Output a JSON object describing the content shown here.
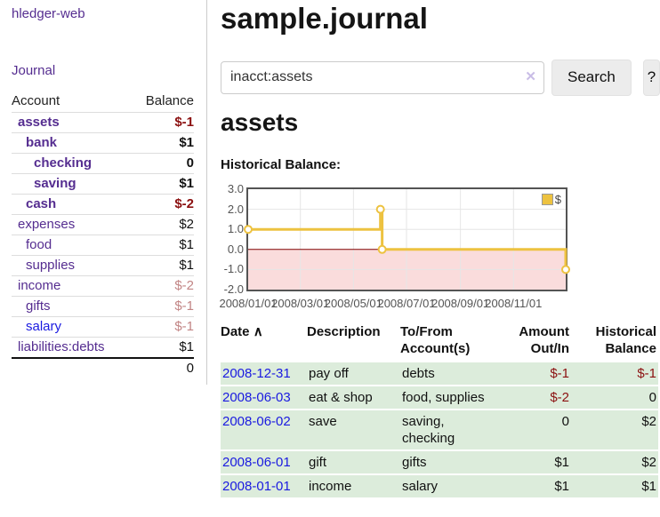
{
  "app": {
    "title": "hledger-web",
    "nav_journal": "Journal"
  },
  "colors": {
    "link_purple": "#552d90",
    "link_blue": "#1a1ae0",
    "negative_strong": "#8b1010",
    "negative_soft": "#c28585",
    "series_yellow": "#edc240",
    "chart_negative_fill": "#fadcdc",
    "chart_zero_line": "#800000",
    "grid_gray": "#e6e6e6",
    "row_green": "#dcecdb",
    "button_bg": "#ececec"
  },
  "sidebar": {
    "accounts_table": {
      "headers": {
        "account": "Account",
        "balance": "Balance"
      },
      "rows": [
        {
          "name": "assets",
          "indent": 1,
          "bold": true,
          "balance": "$-1",
          "balance_style": "negative"
        },
        {
          "name": "bank",
          "indent": 2,
          "bold": true,
          "balance": "$1",
          "balance_style": "normal"
        },
        {
          "name": "checking",
          "indent": 3,
          "bold": true,
          "balance": "0",
          "balance_style": "normal"
        },
        {
          "name": "saving",
          "indent": 3,
          "bold": true,
          "balance": "$1",
          "balance_style": "normal"
        },
        {
          "name": "cash",
          "indent": 2,
          "bold": true,
          "balance": "$-2",
          "balance_style": "negative"
        },
        {
          "name": "expenses",
          "indent": 1,
          "bold": false,
          "balance": "$2",
          "balance_style": "normal"
        },
        {
          "name": "food",
          "indent": 2,
          "bold": false,
          "balance": "$1",
          "balance_style": "normal"
        },
        {
          "name": "supplies",
          "indent": 2,
          "bold": false,
          "balance": "$1",
          "balance_style": "normal"
        },
        {
          "name": "income",
          "indent": 1,
          "bold": false,
          "balance": "$-2",
          "balance_style": "negative-soft"
        },
        {
          "name": "gifts",
          "indent": 2,
          "bold": false,
          "balance": "$-1",
          "balance_style": "negative-soft"
        },
        {
          "name": "salary",
          "indent": 2,
          "bold": false,
          "balance": "$-1",
          "balance_style": "negative-soft",
          "link_style": "unvisited"
        },
        {
          "name": "liabilities:debts",
          "indent": 1,
          "bold": false,
          "balance": "$1",
          "balance_style": "normal"
        }
      ],
      "total": "0"
    }
  },
  "main": {
    "title": "sample.journal",
    "search": {
      "value": "inacct:assets",
      "clear_icon": "✕",
      "button": "Search",
      "help_button": "?"
    },
    "account_heading": "assets",
    "chart_label": "Historical Balance:"
  },
  "chart_data": {
    "type": "line",
    "step": true,
    "title": "Historical Balance of assets",
    "x_range": [
      "2008-01-01",
      "2008-12-31"
    ],
    "ylim": [
      -2,
      3
    ],
    "yticks": [
      "3.0",
      "2.0",
      "1.0",
      "0.0",
      "-1.0",
      "-2.0"
    ],
    "xticks": [
      "2008/01/01",
      "2008/03/01",
      "2008/05/01",
      "2008/07/01",
      "2008/09/01",
      "2008/11/01"
    ],
    "grid": true,
    "legend_position": "top-right",
    "negative_region_shaded": true,
    "series": [
      {
        "name": "$",
        "points": [
          [
            "2008-01-01",
            1
          ],
          [
            "2008-06-01",
            2
          ],
          [
            "2008-06-03",
            0
          ],
          [
            "2008-12-31",
            -1
          ]
        ]
      }
    ]
  },
  "register": {
    "headers": {
      "date": "Date",
      "sort_indicator": "∧",
      "description": "Description",
      "accounts": "To/From Account(s)",
      "amount": "Amount Out/In",
      "balance": "Historical Balance"
    },
    "rows": [
      {
        "date": "2008-12-31",
        "description": "pay off",
        "accounts": "debts",
        "amount": "$-1",
        "amount_negative": true,
        "balance": "$-1",
        "balance_negative": true
      },
      {
        "date": "2008-06-03",
        "description": "eat & shop",
        "accounts": "food, supplies",
        "amount": "$-2",
        "amount_negative": true,
        "balance": "0",
        "balance_negative": false
      },
      {
        "date": "2008-06-02",
        "description": "save",
        "accounts": "saving, checking",
        "amount": "0",
        "amount_negative": false,
        "balance": "$2",
        "balance_negative": false
      },
      {
        "date": "2008-06-01",
        "description": "gift",
        "accounts": "gifts",
        "amount": "$1",
        "amount_negative": false,
        "balance": "$2",
        "balance_negative": false
      },
      {
        "date": "2008-01-01",
        "description": "income",
        "accounts": "salary",
        "amount": "$1",
        "amount_negative": false,
        "balance": "$1",
        "balance_negative": false
      }
    ]
  }
}
